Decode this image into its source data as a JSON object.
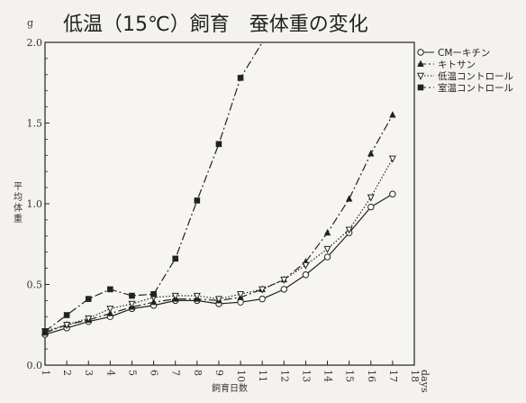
{
  "chart_data": {
    "type": "line",
    "title": "低温（15℃）飼育　蚕体重の変化",
    "ylabel_unit": "g",
    "ylabel": "平均体重",
    "xlabel": "飼育日数",
    "x_unit": "days",
    "x": [
      1,
      2,
      3,
      4,
      5,
      6,
      7,
      8,
      9,
      10,
      11,
      12,
      13,
      14,
      15,
      16,
      17,
      18
    ],
    "xlim": [
      1,
      18
    ],
    "ylim": [
      0.0,
      2.0
    ],
    "yticks": [
      "0.0",
      "0.5",
      "1.0",
      "1.5",
      "2.0"
    ],
    "grid": false,
    "legend_position": "top-right",
    "series": [
      {
        "name": "CMーキチン",
        "marker": "circle-open",
        "line_style": "solid",
        "values": [
          0.19,
          0.23,
          0.27,
          0.3,
          0.35,
          0.37,
          0.4,
          0.4,
          0.38,
          0.39,
          0.41,
          0.47,
          0.56,
          0.67,
          0.82,
          0.98,
          1.06,
          null
        ]
      },
      {
        "name": "キトサン",
        "marker": "triangle-filled",
        "line_style": "dash-dot",
        "values": [
          0.2,
          0.25,
          0.28,
          0.32,
          0.36,
          0.39,
          0.41,
          0.41,
          0.4,
          0.42,
          0.47,
          0.53,
          0.64,
          0.82,
          1.03,
          1.31,
          1.55,
          null
        ]
      },
      {
        "name": "低温コントロール",
        "marker": "triangle-open-down",
        "line_style": "dotted",
        "values": [
          0.21,
          0.25,
          0.29,
          0.35,
          0.38,
          0.42,
          0.43,
          0.43,
          0.41,
          0.44,
          0.47,
          0.53,
          0.62,
          0.72,
          0.84,
          1.04,
          1.28,
          null
        ]
      },
      {
        "name": "室温コントロール",
        "marker": "square-filled",
        "line_style": "dash-dot",
        "values": [
          0.21,
          0.31,
          0.41,
          0.47,
          0.43,
          0.44,
          0.66,
          1.02,
          1.37,
          1.78,
          2.0,
          null,
          null,
          null,
          null,
          null,
          null,
          null
        ]
      }
    ]
  },
  "colors": {
    "ink": "#222222",
    "paper": "#f4f2ee"
  }
}
